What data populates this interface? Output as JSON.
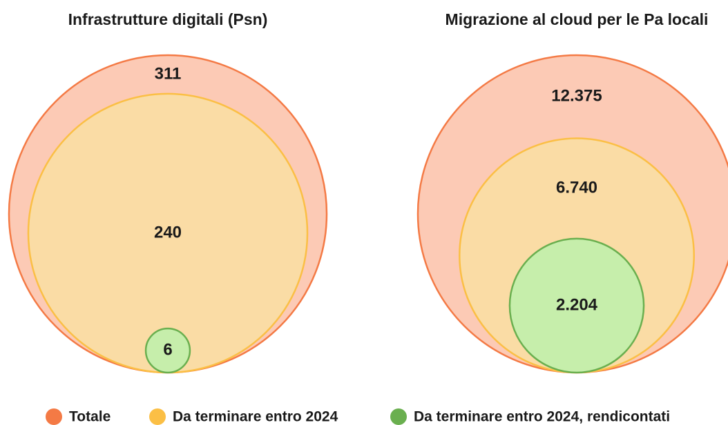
{
  "legend": [
    {
      "name": "Totale",
      "color": "#f47a45",
      "fill": "#fccab5"
    },
    {
      "name": "Da terminare entro 2024",
      "color": "#fbbf45",
      "fill": "#fadca5"
    },
    {
      "name": "Da terminare entro 2024, rendicontati",
      "color": "#6aaf4f",
      "fill": "#c6eeab"
    }
  ],
  "chart_data": [
    {
      "type": "circles",
      "title": "Infrastrutture digitali (Psn)",
      "values": [
        311,
        240,
        6
      ]
    },
    {
      "type": "circles",
      "title": "Migrazione al cloud per le Pa locali",
      "values": [
        12375,
        6740,
        2204
      ],
      "value_labels": [
        "12.375",
        "6.740",
        "2.204"
      ]
    }
  ]
}
